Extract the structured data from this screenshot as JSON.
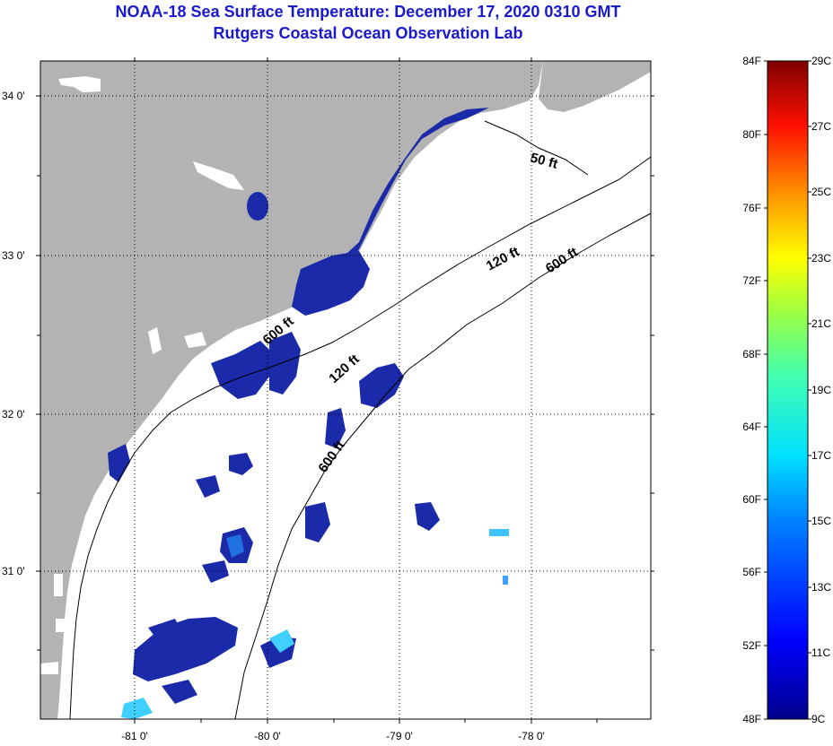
{
  "title": "NOAA-18 Sea Surface Temperature:  December 17, 2020 0310 GMT",
  "subtitle": "Rutgers Coastal Ocean Observation Lab",
  "lat_labels": [
    "34 0'",
    "33 0'",
    "32 0'",
    "31 0'"
  ],
  "lon_labels": [
    "-81 0'",
    "-80 0'",
    "-79 0'",
    "-78 0'"
  ],
  "depth_contours": [
    "50 ft",
    "120 ft",
    "600 ft",
    "120 ft",
    "600 ft",
    "600 ft"
  ],
  "colorbar": {
    "fahrenheit_labels": [
      "84F",
      "80F",
      "76F",
      "72F",
      "68F",
      "64F",
      "60F",
      "56F",
      "52F",
      "48F"
    ],
    "celsius_labels": [
      "29C",
      "27C",
      "25C",
      "23C",
      "21C",
      "19C",
      "17C",
      "15C",
      "13C",
      "11C",
      "9C"
    ]
  },
  "colors": {
    "title": "#1a1acd",
    "land": "#b3b3b3",
    "ocean_no_data": "#ffffff",
    "sst_cold": "#1a2aa8"
  }
}
